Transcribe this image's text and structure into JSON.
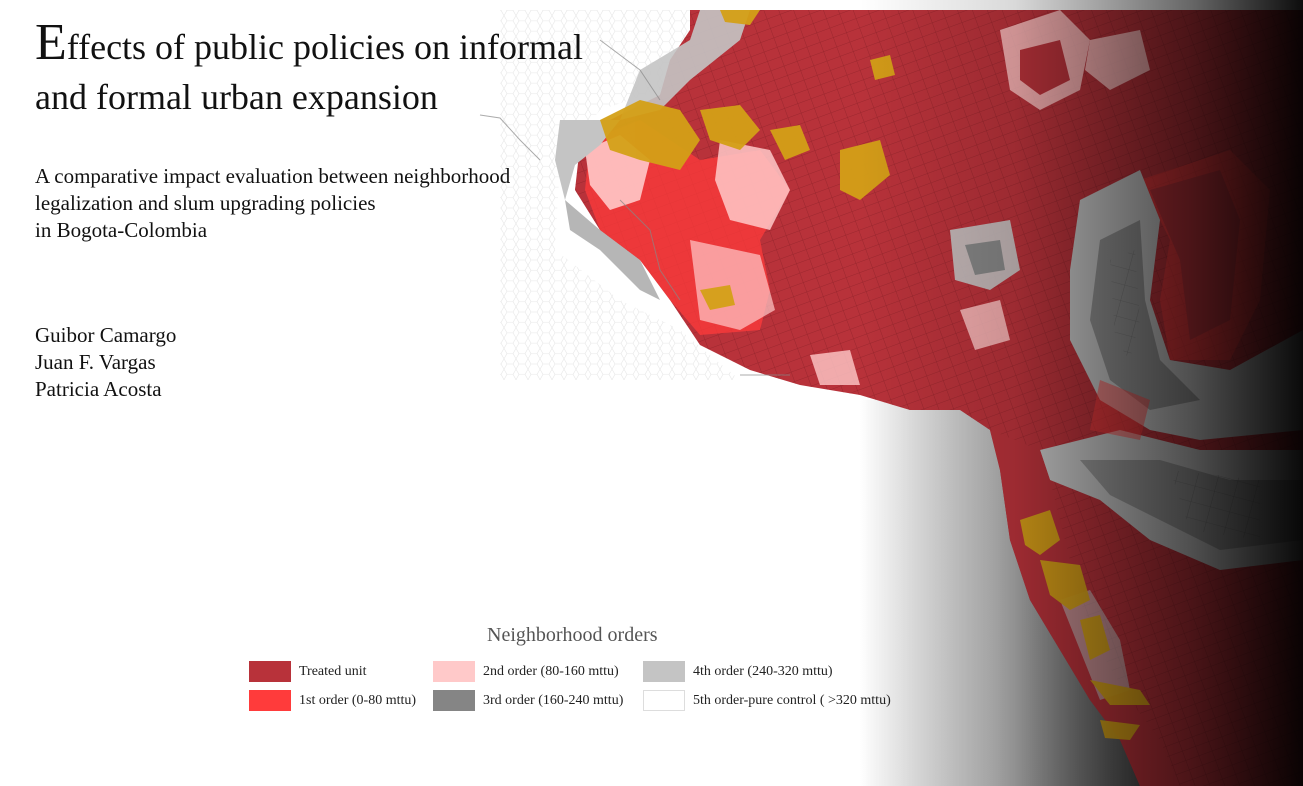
{
  "title": {
    "cap": "E",
    "line1_rest": "ffects of public policies on informal",
    "line2": "and formal urban expansion"
  },
  "subtitle": [
    "A comparative impact evaluation between neighborhood",
    "legalization and slum upgrading policies",
    "in Bogota-Colombia"
  ],
  "authors": [
    "Guibor Camargo",
    "Juan F. Vargas",
    "Patricia Acosta"
  ],
  "legend": {
    "title": "Neighborhood orders",
    "items": [
      {
        "label": "Treated unit",
        "color": "#b8323a"
      },
      {
        "label": "1st order (0-80 mttu)",
        "color": "#ff3b3b"
      },
      {
        "label": "2nd order (80-160 mttu)",
        "color": "#ffc9c9"
      },
      {
        "label": "3rd order (160-240 mttu)",
        "color": "#858585"
      },
      {
        "label": "4th order (240-320 mttu)",
        "color": "#c4c4c4"
      },
      {
        "label": "5th order-pure control ( >320 mttu)",
        "color": "#ffffff"
      }
    ]
  },
  "colors": {
    "treated": "#b8323a",
    "first_order": "#ff3b3b",
    "second_order": "#ffc9c9",
    "third_order": "#858585",
    "fourth_order": "#c4c4c4",
    "informal_settlements": "#d4a017"
  }
}
